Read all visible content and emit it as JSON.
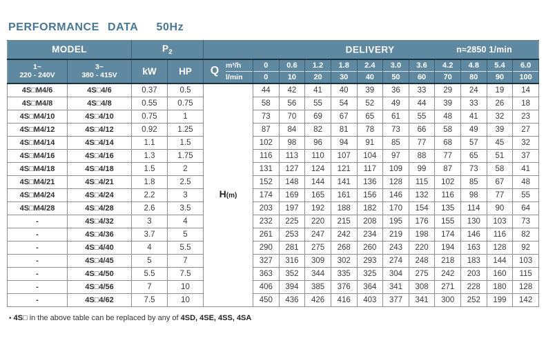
{
  "title": {
    "main": "PERFORMANCE DATA",
    "freq": "50Hz"
  },
  "colors": {
    "header_bg": "#5f89a0",
    "header_line": "#16303e",
    "title": "#467896",
    "grid": "#8d8d8d",
    "text": "#3a3a3a"
  },
  "table": {
    "header": {
      "model_label": "MODEL",
      "p2_label": "P",
      "p2_sub": "2",
      "delivery_label": "DELIVERY",
      "speed_label": "n≈2850 1/min",
      "phase1_line1": "1~",
      "phase1_line2": "220 - 240V",
      "phase3_line1": "3~",
      "phase3_line2": "380 - 415V",
      "kw_label": "kW",
      "hp_label": "HP",
      "q_label": "Q",
      "flow_unit_top": "m³/h",
      "flow_unit_bottom": "l/min",
      "flow_m3h": [
        "0",
        "0.6",
        "1.2",
        "1.8",
        "2.4",
        "3.0",
        "3.6",
        "4.2",
        "4.8",
        "5.4",
        "6.0"
      ],
      "flow_lmin": [
        "0",
        "10",
        "20",
        "30",
        "40",
        "50",
        "60",
        "70",
        "80",
        "90",
        "100"
      ]
    },
    "head_label": {
      "main": "H",
      "sub": "(m)"
    },
    "rows": [
      {
        "model1": "4S□M4/6",
        "model3": "4S□4/6",
        "kw": "0.37",
        "hp": "0.5",
        "head": [
          44,
          42,
          41,
          40,
          39,
          36,
          33,
          29,
          24,
          19,
          14
        ]
      },
      {
        "model1": "4S□M4/8",
        "model3": "4S□4/8",
        "kw": "0.55",
        "hp": "0.75",
        "head": [
          58,
          56,
          55,
          54,
          52,
          49,
          44,
          39,
          33,
          26,
          18
        ]
      },
      {
        "model1": "4S□M4/10",
        "model3": "4S□4/10",
        "kw": "0.75",
        "hp": "1",
        "head": [
          73,
          70,
          69,
          67,
          65,
          61,
          55,
          48,
          41,
          32,
          23
        ]
      },
      {
        "model1": "4S□M4/12",
        "model3": "4S□4/12",
        "kw": "0.92",
        "hp": "1.25",
        "head": [
          87,
          84,
          82,
          81,
          78,
          73,
          66,
          58,
          49,
          39,
          27
        ]
      },
      {
        "model1": "4S□M4/14",
        "model3": "4S□4/14",
        "kw": "1.1",
        "hp": "1.5",
        "head": [
          102,
          98,
          96,
          94,
          91,
          85,
          77,
          68,
          57,
          45,
          32
        ]
      },
      {
        "model1": "4S□M4/16",
        "model3": "4S□4/16",
        "kw": "1.3",
        "hp": "1.75",
        "head": [
          116,
          113,
          110,
          107,
          104,
          97,
          88,
          77,
          65,
          51,
          37
        ]
      },
      {
        "model1": "4S□M4/18",
        "model3": "4S□4/18",
        "kw": "1.5",
        "hp": "2",
        "head": [
          131,
          127,
          124,
          121,
          117,
          109,
          99,
          87,
          73,
          58,
          41
        ]
      },
      {
        "model1": "4S□M4/21",
        "model3": "4S□4/21",
        "kw": "1.8",
        "hp": "2.5",
        "head": [
          152,
          148,
          144,
          141,
          136,
          128,
          115,
          102,
          85,
          67,
          48
        ]
      },
      {
        "model1": "4S□M4/24",
        "model3": "4S□4/24",
        "kw": "2.2",
        "hp": "3",
        "head": [
          174,
          169,
          165,
          161,
          156,
          146,
          132,
          116,
          98,
          77,
          55
        ]
      },
      {
        "model1": "4S□M4/28",
        "model3": "4S□4/28",
        "kw": "2.6",
        "hp": "3.5",
        "head": [
          203,
          197,
          192,
          188,
          182,
          170,
          154,
          135,
          114,
          90,
          64
        ]
      },
      {
        "model1": "-",
        "model3": "4S□4/32",
        "kw": "3",
        "hp": "4",
        "head": [
          232,
          225,
          220,
          215,
          208,
          195,
          176,
          155,
          130,
          103,
          73
        ]
      },
      {
        "model1": "-",
        "model3": "4S□4/36",
        "kw": "3.7",
        "hp": "5",
        "head": [
          261,
          253,
          247,
          242,
          234,
          219,
          198,
          174,
          146,
          116,
          82
        ]
      },
      {
        "model1": "-",
        "model3": "4S□4/40",
        "kw": "4",
        "hp": "5.5",
        "head": [
          290,
          281,
          275,
          268,
          260,
          243,
          220,
          194,
          163,
          128,
          92
        ]
      },
      {
        "model1": "-",
        "model3": "4S□4/45",
        "kw": "5",
        "hp": "7",
        "head": [
          327,
          316,
          309,
          302,
          293,
          274,
          248,
          218,
          183,
          144,
          103
        ]
      },
      {
        "model1": "-",
        "model3": "4S□4/50",
        "kw": "5.5",
        "hp": "7.5",
        "head": [
          363,
          352,
          344,
          335,
          325,
          304,
          275,
          242,
          203,
          160,
          115
        ]
      },
      {
        "model1": "-",
        "model3": "4S□4/56",
        "kw": "7",
        "hp": "10",
        "head": [
          406,
          394,
          385,
          376,
          364,
          341,
          308,
          271,
          228,
          180,
          128
        ]
      },
      {
        "model1": "-",
        "model3": "4S□4/62",
        "kw": "7.5",
        "hp": "10",
        "head": [
          450,
          436,
          426,
          416,
          403,
          377,
          341,
          300,
          252,
          199,
          142
        ]
      }
    ]
  },
  "footnote": {
    "bullet": "•",
    "code": "4S□",
    "text": "in the above table can be replaced by any of",
    "models": "4SD, 4SE, 4SS, 4SA"
  }
}
